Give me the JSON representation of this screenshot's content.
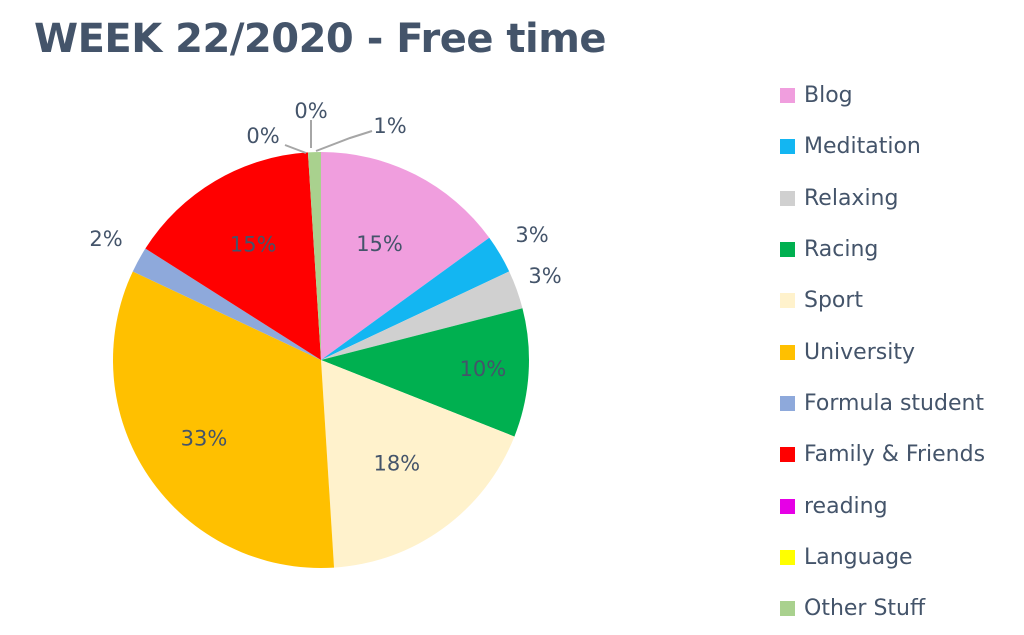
{
  "chart_data": {
    "type": "pie",
    "title": "WEEK 22/2020 - Free time",
    "legend_position": "right",
    "slices": [
      {
        "name": "Blog",
        "value": 15,
        "label": "15%",
        "color": "#f09ede"
      },
      {
        "name": "Meditation",
        "value": 3,
        "label": "3%",
        "color": "#13b6f2"
      },
      {
        "name": "Relaxing",
        "value": 3,
        "label": "3%",
        "color": "#d0d0d0"
      },
      {
        "name": "Racing",
        "value": 10,
        "label": "10%",
        "color": "#00b050"
      },
      {
        "name": "Sport",
        "value": 18,
        "label": "18%",
        "color": "#fff2cc"
      },
      {
        "name": "University",
        "value": 33,
        "label": "33%",
        "color": "#ffc000"
      },
      {
        "name": "Formula student",
        "value": 2,
        "label": "2%",
        "color": "#8ea9db"
      },
      {
        "name": "Family & Friends",
        "value": 15,
        "label": "15%",
        "color": "#ff0000"
      },
      {
        "name": "reading",
        "value": 0,
        "label": "0%",
        "color": "#e600e6"
      },
      {
        "name": "Language",
        "value": 0,
        "label": "0%",
        "color": "#ffff00"
      },
      {
        "name": "Other Stuff",
        "value": 1,
        "label": "1%",
        "color": "#a9d18e"
      }
    ]
  }
}
